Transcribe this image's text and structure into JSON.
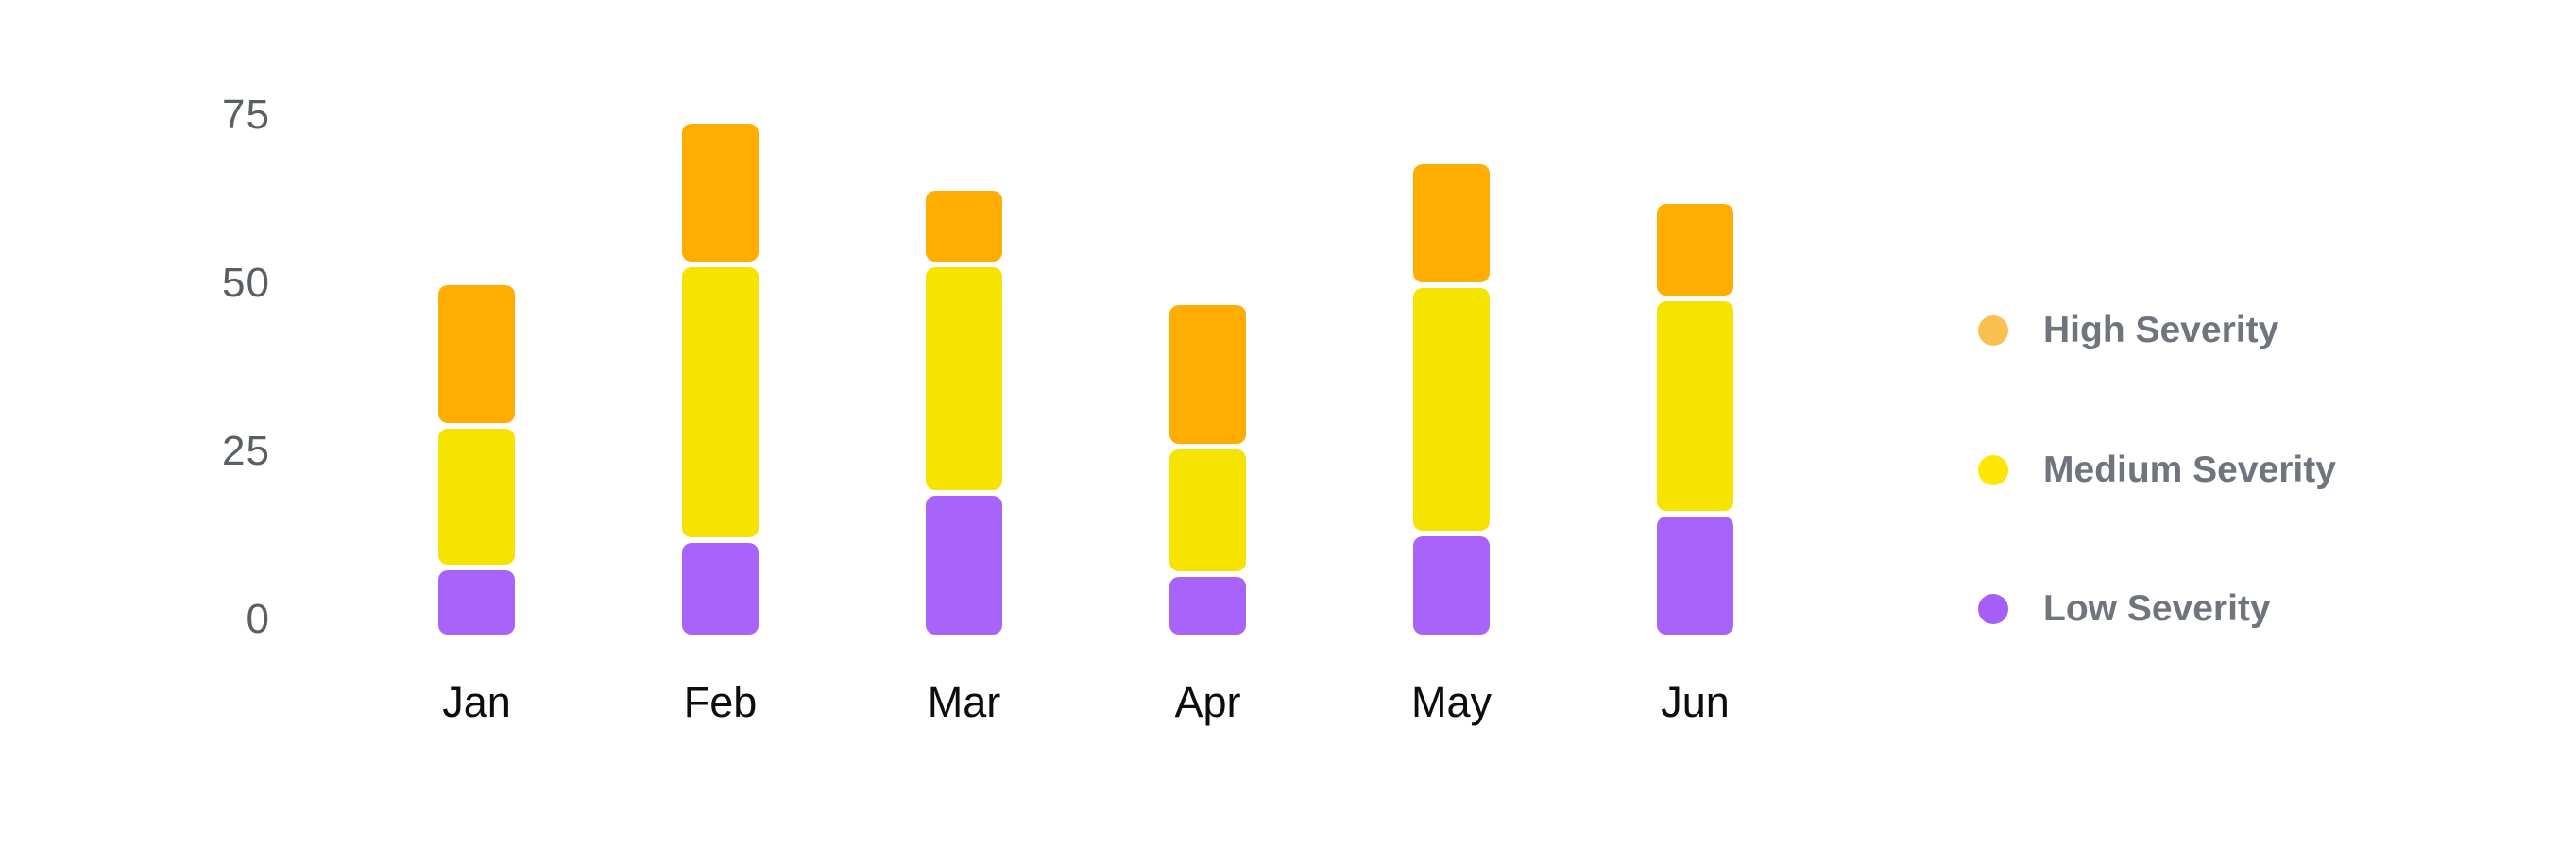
{
  "chart_data": {
    "type": "bar",
    "stacked": true,
    "title": "",
    "xlabel": "",
    "ylabel": "",
    "categories": [
      "Jan",
      "Feb",
      "Mar",
      "Apr",
      "May",
      "Jun"
    ],
    "series": [
      {
        "name": "Low Severity",
        "color": "#A863FA",
        "values": [
          10,
          14,
          21,
          9,
          15,
          18
        ]
      },
      {
        "name": "Medium Severity",
        "color": "#F6E300",
        "values": [
          21,
          41,
          34,
          19,
          37,
          32
        ]
      },
      {
        "name": "High Severity",
        "color": "#FFAD00",
        "values": [
          21,
          21,
          11,
          21,
          18,
          14
        ]
      }
    ],
    "totals": [
      52,
      76,
      66,
      49,
      70,
      64
    ],
    "yticks": [
      0,
      25,
      50,
      75
    ],
    "ylim": [
      0,
      80
    ],
    "grid": false,
    "axis_lines": false,
    "legend_position": "right",
    "legend": [
      {
        "label": "High Severity",
        "dot_color": "#F9C152"
      },
      {
        "label": "Medium Severity",
        "dot_color": "#FFE604"
      },
      {
        "label": "Low Severity",
        "dot_color": "#A55FF7"
      }
    ]
  },
  "colors": {
    "background": "#FFFFFF",
    "ytick_text": "#5A5F63",
    "xlabel_text": "#0D0D0D",
    "legend_text": "#70757D",
    "bar_low": "#A863FA",
    "bar_medium": "#F6E300",
    "bar_high": "#FFAD00"
  }
}
